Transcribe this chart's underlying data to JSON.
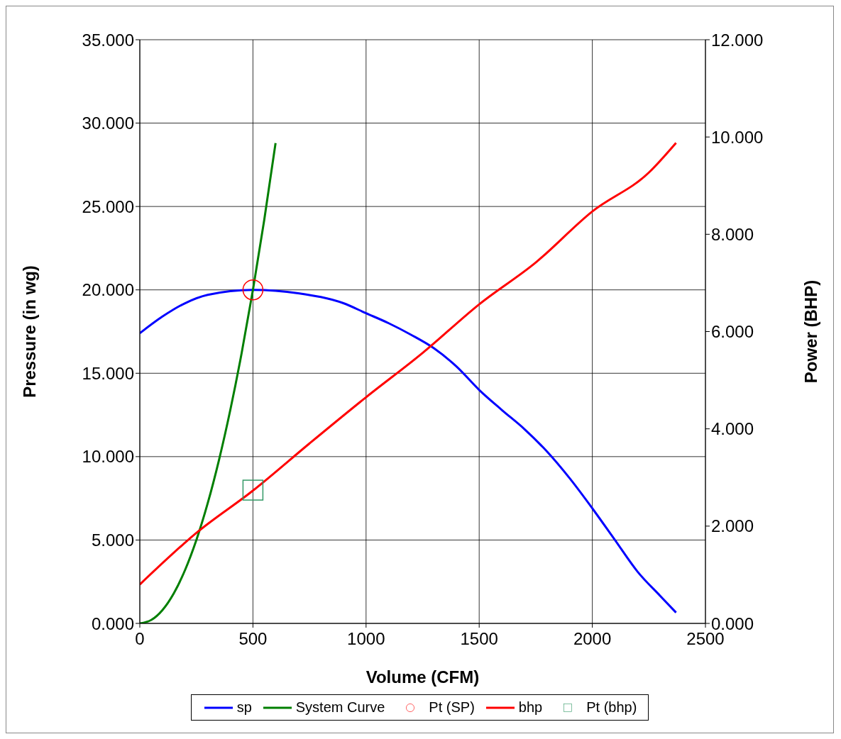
{
  "chart_data": {
    "type": "line",
    "xlabel": "Volume (CFM)",
    "ylabel": "Pressure (in wg)",
    "y2label": "Power (BHP)",
    "xlim": [
      0,
      2500
    ],
    "xticks": [
      0,
      500,
      1000,
      1500,
      2000,
      2500
    ],
    "ylim": [
      0,
      35
    ],
    "yticks": [
      {
        "value": 0,
        "label": "0.000"
      },
      {
        "value": 5,
        "label": "5.000"
      },
      {
        "value": 10,
        "label": "10.000"
      },
      {
        "value": 15,
        "label": "15.000"
      },
      {
        "value": 20,
        "label": "20.000"
      },
      {
        "value": 25,
        "label": "25.000"
      },
      {
        "value": 30,
        "label": "30.000"
      },
      {
        "value": 35,
        "label": "35.000"
      }
    ],
    "y2lim": [
      0,
      12
    ],
    "y2ticks": [
      {
        "value": 0,
        "label": "0.000"
      },
      {
        "value": 2,
        "label": "2.000"
      },
      {
        "value": 4,
        "label": "4.000"
      },
      {
        "value": 6,
        "label": "6.000"
      },
      {
        "value": 8,
        "label": "8.000"
      },
      {
        "value": 10,
        "label": "10.000"
      },
      {
        "value": 12,
        "label": "12.000"
      }
    ],
    "grid": true,
    "legend": "bottom",
    "line_style": "solid",
    "series": [
      {
        "name": "sp",
        "type": "line",
        "color": "#0000ff",
        "marker": "none",
        "x": [
          0,
          100,
          200,
          300,
          500,
          700,
          900,
          1000,
          1100,
          1200,
          1300,
          1400,
          1500,
          1600,
          1700,
          1800,
          1900,
          2000,
          2100,
          2200,
          2300,
          2370
        ],
        "values": [
          17.4,
          18.4,
          19.2,
          19.7,
          20.0,
          19.8,
          19.2,
          18.6,
          18.0,
          17.3,
          16.5,
          15.4,
          14.0,
          12.8,
          11.65,
          10.3,
          8.7,
          6.9,
          5.0,
          3.1,
          1.65,
          0.65
        ]
      },
      {
        "name": "System Curve",
        "type": "line",
        "color": "#007f00",
        "marker": "none",
        "x": [
          0,
          50,
          100,
          150,
          200,
          250,
          300,
          350,
          400,
          450,
          500,
          550,
          600
        ],
        "values": [
          0,
          0.2,
          0.8,
          1.8,
          3.2,
          5.0,
          7.2,
          9.8,
          12.8,
          16.2,
          20.0,
          24.2,
          28.8
        ]
      },
      {
        "name": "Pt (SP)",
        "type": "scatter",
        "color": "#ff0000",
        "marker": "circle",
        "x": [
          500
        ],
        "values": [
          20.0
        ]
      },
      {
        "name": "bhp",
        "type": "line",
        "axis": "y2",
        "color": "#ff0000",
        "marker": "none",
        "x": [
          0,
          250,
          500,
          750,
          1000,
          1250,
          1500,
          1750,
          2000,
          2250,
          2370
        ],
        "values": [
          0.8,
          1.86,
          2.73,
          3.7,
          4.65,
          5.56,
          6.56,
          7.42,
          8.47,
          9.27,
          9.88
        ]
      },
      {
        "name": "Pt (bhp)",
        "type": "scatter",
        "axis": "y2",
        "color": "#339966",
        "marker": "square",
        "x": [
          500
        ],
        "values": [
          2.74
        ]
      }
    ]
  }
}
